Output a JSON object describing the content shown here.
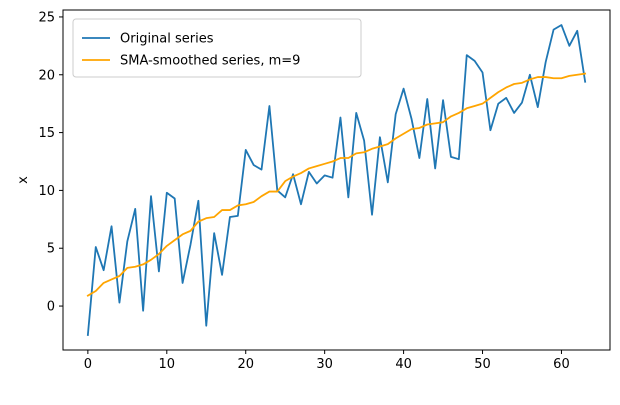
{
  "chart_data": {
    "type": "line",
    "title": "",
    "xlabel": "",
    "ylabel": "x",
    "xlim": [
      -3.15,
      66.15
    ],
    "ylim": [
      -3.8,
      25.6
    ],
    "xticks": [
      0,
      10,
      20,
      30,
      40,
      50,
      60
    ],
    "yticks": [
      0,
      5,
      10,
      15,
      20,
      25
    ],
    "grid": false,
    "legend_position": "top-left",
    "x": [
      0,
      1,
      2,
      3,
      4,
      5,
      6,
      7,
      8,
      9,
      10,
      11,
      12,
      13,
      14,
      15,
      16,
      17,
      18,
      19,
      20,
      21,
      22,
      23,
      24,
      25,
      26,
      27,
      28,
      29,
      30,
      31,
      32,
      33,
      34,
      35,
      36,
      37,
      38,
      39,
      40,
      41,
      42,
      43,
      44,
      45,
      46,
      47,
      48,
      49,
      50,
      51,
      52,
      53,
      54,
      55,
      56,
      57,
      58,
      59,
      60,
      61,
      62,
      63
    ],
    "series": [
      {
        "name": "Original series",
        "color": "#1f77b4",
        "values": [
          -2.5,
          5.1,
          3.1,
          6.9,
          0.3,
          5.6,
          8.4,
          -0.4,
          9.5,
          3.0,
          9.8,
          9.3,
          2.0,
          5.3,
          9.1,
          -1.7,
          6.3,
          2.7,
          7.7,
          7.8,
          13.5,
          12.2,
          11.8,
          17.3,
          10.0,
          9.4,
          11.4,
          8.8,
          11.6,
          10.6,
          11.3,
          11.1,
          16.3,
          9.4,
          16.7,
          14.3,
          7.9,
          14.6,
          10.7,
          16.6,
          18.8,
          16.2,
          12.8,
          17.9,
          11.9,
          17.8,
          12.9,
          12.7,
          21.7,
          21.2,
          20.2,
          15.2,
          17.5,
          18.0,
          16.7,
          17.6,
          20.0,
          17.2,
          21.1,
          23.9,
          24.3,
          22.5,
          23.8,
          19.4
        ]
      },
      {
        "name": "SMA-smoothed series, m=9",
        "color": "#ffa500",
        "values": [
          0.9,
          1.3,
          2.0,
          2.3,
          2.6,
          3.3,
          3.4,
          3.6,
          4.0,
          4.5,
          5.2,
          5.7,
          6.2,
          6.5,
          7.3,
          7.6,
          7.7,
          8.3,
          8.3,
          8.7,
          8.8,
          9.0,
          9.5,
          9.9,
          9.9,
          10.8,
          11.2,
          11.5,
          11.9,
          12.1,
          12.3,
          12.5,
          12.8,
          12.8,
          13.2,
          13.3,
          13.6,
          13.8,
          14.0,
          14.5,
          14.9,
          15.3,
          15.4,
          15.7,
          15.8,
          15.9,
          16.4,
          16.7,
          17.1,
          17.3,
          17.5,
          18.0,
          18.5,
          18.9,
          19.2,
          19.3,
          19.6,
          19.8,
          19.8,
          19.7,
          19.7,
          19.9,
          20.0,
          20.1
        ]
      }
    ]
  }
}
